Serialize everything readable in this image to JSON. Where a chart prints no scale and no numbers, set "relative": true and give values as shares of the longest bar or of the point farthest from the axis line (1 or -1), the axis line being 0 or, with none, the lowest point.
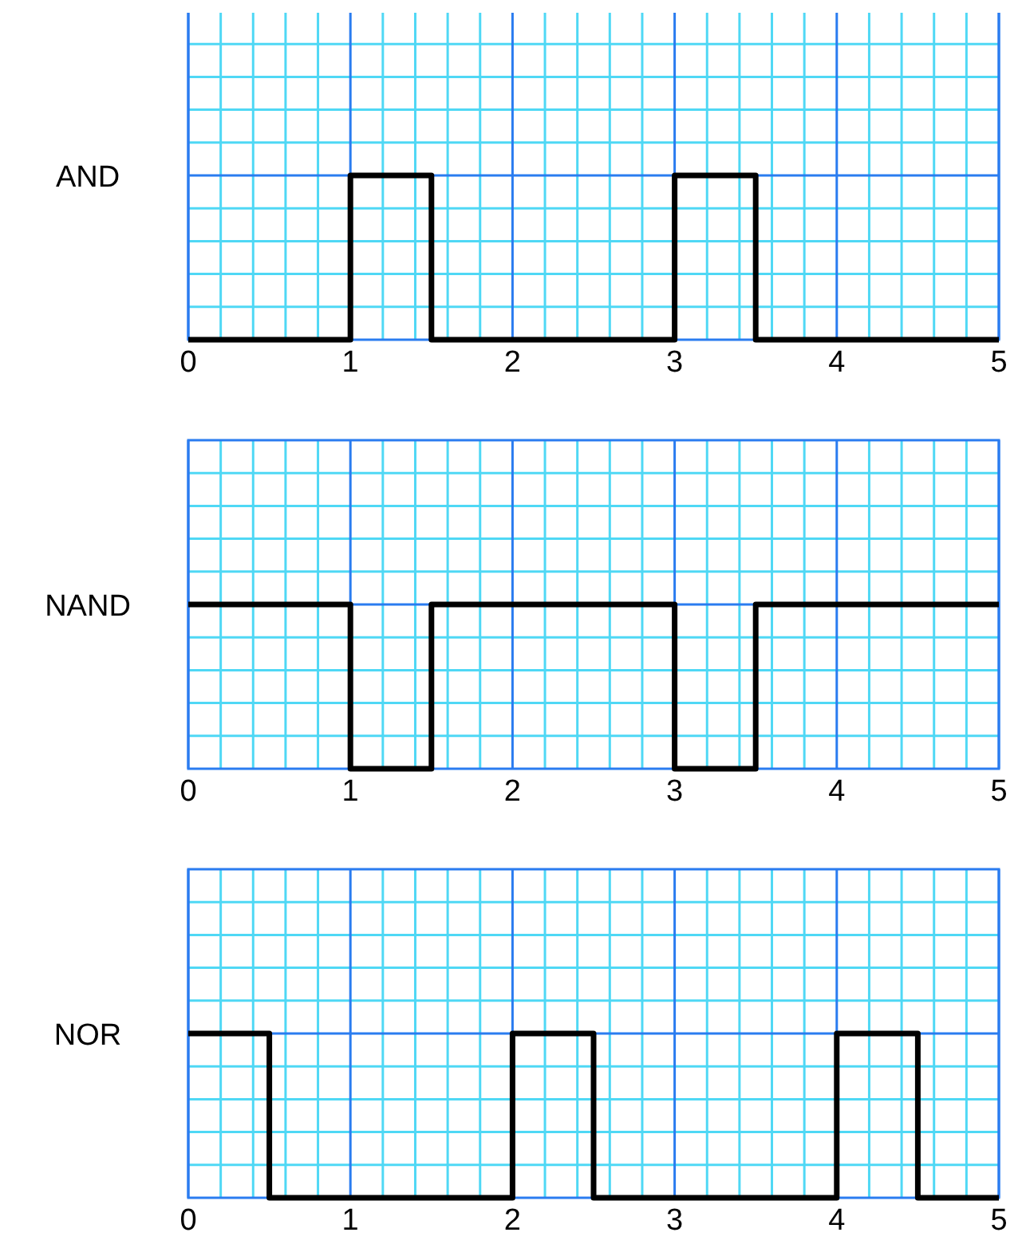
{
  "chart_data": [
    {
      "type": "step",
      "ylabel": "AND",
      "relative": true,
      "xlim": [
        0,
        5
      ],
      "xticks": [
        0,
        {
          "value": 0.2,
          "label": null
        },
        {
          "value": 0.4,
          "label": null
        },
        {
          "value": 0.6,
          "label": null
        },
        {
          "value": 0.8,
          "label": null
        },
        1,
        {
          "value": 1.2,
          "label": null
        },
        {
          "value": 1.4,
          "label": null
        },
        {
          "value": 1.6,
          "label": null
        },
        {
          "value": 1.8,
          "label": null
        },
        2,
        {
          "value": 2.2,
          "label": null
        },
        {
          "value": 2.4,
          "label": null
        },
        {
          "value": 2.6,
          "label": null
        },
        {
          "value": 2.8,
          "label": null
        },
        3,
        {
          "value": 3.2,
          "label": null
        },
        {
          "value": 3.4,
          "label": null
        },
        {
          "value": 3.6,
          "label": null
        },
        {
          "value": 3.8,
          "label": null
        },
        4,
        {
          "value": 4.2,
          "label": null
        },
        {
          "value": 4.4,
          "label": null
        },
        {
          "value": 4.6,
          "label": null
        },
        {
          "value": 4.8,
          "label": null
        },
        5
      ],
      "grid": true,
      "series": [
        {
          "color": "#000000",
          "x": [
            0,
            1,
            1.5,
            3,
            3.5,
            5
          ],
          "values": [
            0,
            1,
            0,
            1,
            0,
            0
          ]
        }
      ]
    },
    {
      "type": "step",
      "ylabel": "NAND",
      "relative": true,
      "xlim": [
        0,
        5
      ],
      "xticks": [
        0,
        {
          "value": 0.2,
          "label": null
        },
        {
          "value": 0.4,
          "label": null
        },
        {
          "value": 0.6,
          "label": null
        },
        {
          "value": 0.8,
          "label": null
        },
        1,
        {
          "value": 1.2,
          "label": null
        },
        {
          "value": 1.4,
          "label": null
        },
        {
          "value": 1.6,
          "label": null
        },
        {
          "value": 1.8,
          "label": null
        },
        2,
        {
          "value": 2.2,
          "label": null
        },
        {
          "value": 2.4,
          "label": null
        },
        {
          "value": 2.6,
          "label": null
        },
        {
          "value": 2.8,
          "label": null
        },
        3,
        {
          "value": 3.2,
          "label": null
        },
        {
          "value": 3.4,
          "label": null
        },
        {
          "value": 3.6,
          "label": null
        },
        {
          "value": 3.8,
          "label": null
        },
        4,
        {
          "value": 4.2,
          "label": null
        },
        {
          "value": 4.4,
          "label": null
        },
        {
          "value": 4.6,
          "label": null
        },
        {
          "value": 4.8,
          "label": null
        },
        5
      ],
      "grid": true,
      "series": [
        {
          "color": "#000000",
          "x": [
            0,
            1,
            1.5,
            3,
            3.5,
            5
          ],
          "values": [
            1,
            0,
            1,
            0,
            1,
            1
          ]
        }
      ]
    },
    {
      "type": "step",
      "ylabel": "NOR",
      "relative": true,
      "xlim": [
        0,
        5
      ],
      "xticks": [
        0,
        {
          "value": 0.2,
          "label": null
        },
        {
          "value": 0.4,
          "label": null
        },
        {
          "value": 0.6,
          "label": null
        },
        {
          "value": 0.8,
          "label": null
        },
        1,
        {
          "value": 1.2,
          "label": null
        },
        {
          "value": 1.4,
          "label": null
        },
        {
          "value": 1.6,
          "label": null
        },
        {
          "value": 1.8,
          "label": null
        },
        2,
        {
          "value": 2.2,
          "label": null
        },
        {
          "value": 2.4,
          "label": null
        },
        {
          "value": 2.6,
          "label": null
        },
        {
          "value": 2.8,
          "label": null
        },
        3,
        {
          "value": 3.2,
          "label": null
        },
        {
          "value": 3.4,
          "label": null
        },
        {
          "value": 3.6,
          "label": null
        },
        {
          "value": 3.8,
          "label": null
        },
        4,
        {
          "value": 4.2,
          "label": null
        },
        {
          "value": 4.4,
          "label": null
        },
        {
          "value": 4.6,
          "label": null
        },
        {
          "value": 4.8,
          "label": null
        },
        5
      ],
      "grid": true,
      "series": [
        {
          "color": "#000000",
          "x": [
            0,
            0.5,
            2,
            2.5,
            4,
            4.5,
            5
          ],
          "values": [
            1,
            0,
            1,
            0,
            1,
            0,
            0
          ]
        }
      ]
    }
  ]
}
